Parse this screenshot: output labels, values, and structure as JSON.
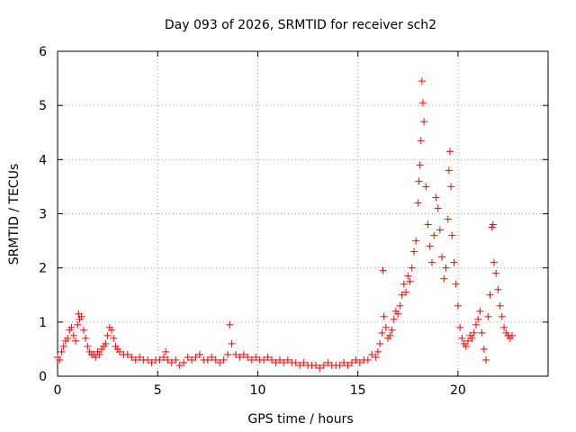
{
  "chart_data": {
    "type": "scatter",
    "title": "Day 093 of 2026, SRMTID for receiver sch2",
    "xlabel": "GPS time / hours",
    "ylabel": "SRMTID / TECUs",
    "xlim": [
      0,
      24.5
    ],
    "ylim": [
      0,
      6
    ],
    "x_ticks": [
      0,
      5,
      10,
      15,
      20
    ],
    "y_ticks": [
      0,
      1,
      2,
      3,
      4,
      5,
      6
    ],
    "x_tick_labels": [
      "0",
      "5",
      "10",
      "15",
      "20"
    ],
    "y_tick_labels": [
      "0",
      "1",
      "2",
      "3",
      "4",
      "5",
      "6"
    ],
    "grid": true,
    "marker": "+",
    "series": [
      {
        "name": "sch2",
        "color": "#ff0000",
        "points": [
          [
            0.0,
            0.35
          ],
          [
            0.1,
            0.3
          ],
          [
            0.2,
            0.45
          ],
          [
            0.3,
            0.55
          ],
          [
            0.4,
            0.65
          ],
          [
            0.5,
            0.7
          ],
          [
            0.6,
            0.85
          ],
          [
            0.7,
            0.9
          ],
          [
            0.8,
            0.75
          ],
          [
            0.9,
            0.65
          ],
          [
            1.0,
            0.95
          ],
          [
            1.05,
            1.15
          ],
          [
            1.1,
            1.05
          ],
          [
            1.2,
            1.1
          ],
          [
            1.3,
            0.85
          ],
          [
            1.4,
            0.7
          ],
          [
            1.5,
            0.55
          ],
          [
            1.6,
            0.45
          ],
          [
            1.7,
            0.4
          ],
          [
            1.8,
            0.4
          ],
          [
            1.9,
            0.35
          ],
          [
            2.0,
            0.45
          ],
          [
            2.1,
            0.4
          ],
          [
            2.2,
            0.5
          ],
          [
            2.3,
            0.55
          ],
          [
            2.4,
            0.6
          ],
          [
            2.5,
            0.75
          ],
          [
            2.6,
            0.9
          ],
          [
            2.7,
            0.85
          ],
          [
            2.8,
            0.7
          ],
          [
            2.9,
            0.55
          ],
          [
            3.0,
            0.5
          ],
          [
            3.1,
            0.45
          ],
          [
            3.3,
            0.4
          ],
          [
            3.5,
            0.4
          ],
          [
            3.7,
            0.35
          ],
          [
            3.9,
            0.3
          ],
          [
            4.1,
            0.35
          ],
          [
            4.3,
            0.3
          ],
          [
            4.5,
            0.3
          ],
          [
            4.7,
            0.25
          ],
          [
            4.9,
            0.3
          ],
          [
            5.1,
            0.3
          ],
          [
            5.3,
            0.35
          ],
          [
            5.4,
            0.45
          ],
          [
            5.5,
            0.3
          ],
          [
            5.7,
            0.25
          ],
          [
            5.9,
            0.3
          ],
          [
            6.1,
            0.2
          ],
          [
            6.3,
            0.25
          ],
          [
            6.5,
            0.35
          ],
          [
            6.7,
            0.3
          ],
          [
            6.9,
            0.35
          ],
          [
            7.1,
            0.4
          ],
          [
            7.3,
            0.3
          ],
          [
            7.5,
            0.3
          ],
          [
            7.7,
            0.35
          ],
          [
            7.9,
            0.3
          ],
          [
            8.1,
            0.25
          ],
          [
            8.3,
            0.3
          ],
          [
            8.5,
            0.4
          ],
          [
            8.6,
            0.95
          ],
          [
            8.7,
            0.6
          ],
          [
            8.9,
            0.4
          ],
          [
            9.1,
            0.35
          ],
          [
            9.3,
            0.4
          ],
          [
            9.5,
            0.35
          ],
          [
            9.7,
            0.3
          ],
          [
            9.9,
            0.35
          ],
          [
            10.1,
            0.3
          ],
          [
            10.3,
            0.3
          ],
          [
            10.5,
            0.35
          ],
          [
            10.7,
            0.3
          ],
          [
            10.9,
            0.25
          ],
          [
            11.1,
            0.3
          ],
          [
            11.3,
            0.25
          ],
          [
            11.5,
            0.3
          ],
          [
            11.7,
            0.25
          ],
          [
            11.9,
            0.25
          ],
          [
            12.1,
            0.2
          ],
          [
            12.3,
            0.25
          ],
          [
            12.5,
            0.2
          ],
          [
            12.7,
            0.2
          ],
          [
            12.9,
            0.2
          ],
          [
            13.1,
            0.15
          ],
          [
            13.3,
            0.2
          ],
          [
            13.5,
            0.25
          ],
          [
            13.7,
            0.2
          ],
          [
            13.9,
            0.2
          ],
          [
            14.1,
            0.2
          ],
          [
            14.3,
            0.25
          ],
          [
            14.5,
            0.2
          ],
          [
            14.7,
            0.25
          ],
          [
            14.9,
            0.3
          ],
          [
            15.1,
            0.25
          ],
          [
            15.3,
            0.3
          ],
          [
            15.5,
            0.3
          ],
          [
            15.7,
            0.4
          ],
          [
            15.9,
            0.35
          ],
          [
            16.0,
            0.45
          ],
          [
            16.1,
            0.6
          ],
          [
            16.2,
            0.8
          ],
          [
            16.25,
            1.95
          ],
          [
            16.3,
            1.1
          ],
          [
            16.4,
            0.9
          ],
          [
            16.5,
            0.7
          ],
          [
            16.6,
            0.75
          ],
          [
            16.7,
            0.85
          ],
          [
            16.8,
            1.05
          ],
          [
            16.9,
            1.2
          ],
          [
            17.0,
            1.15
          ],
          [
            17.1,
            1.3
          ],
          [
            17.2,
            1.5
          ],
          [
            17.3,
            1.7
          ],
          [
            17.4,
            1.55
          ],
          [
            17.5,
            1.85
          ],
          [
            17.6,
            1.75
          ],
          [
            17.7,
            2.0
          ],
          [
            17.8,
            2.3
          ],
          [
            17.9,
            2.5
          ],
          [
            18.0,
            3.2
          ],
          [
            18.05,
            3.6
          ],
          [
            18.1,
            3.9
          ],
          [
            18.15,
            4.35
          ],
          [
            18.2,
            5.45
          ],
          [
            18.25,
            5.05
          ],
          [
            18.3,
            4.7
          ],
          [
            18.4,
            3.5
          ],
          [
            18.5,
            2.8
          ],
          [
            18.6,
            2.4
          ],
          [
            18.7,
            2.1
          ],
          [
            18.8,
            2.6
          ],
          [
            18.9,
            3.3
          ],
          [
            19.0,
            3.1
          ],
          [
            19.1,
            2.7
          ],
          [
            19.2,
            2.2
          ],
          [
            19.3,
            1.8
          ],
          [
            19.4,
            2.0
          ],
          [
            19.5,
            2.9
          ],
          [
            19.55,
            3.8
          ],
          [
            19.6,
            4.15
          ],
          [
            19.65,
            3.5
          ],
          [
            19.7,
            2.6
          ],
          [
            19.8,
            2.1
          ],
          [
            19.9,
            1.7
          ],
          [
            20.0,
            1.3
          ],
          [
            20.1,
            0.9
          ],
          [
            20.2,
            0.7
          ],
          [
            20.3,
            0.6
          ],
          [
            20.4,
            0.55
          ],
          [
            20.5,
            0.65
          ],
          [
            20.6,
            0.75
          ],
          [
            20.7,
            0.7
          ],
          [
            20.8,
            0.8
          ],
          [
            20.9,
            0.95
          ],
          [
            21.0,
            1.05
          ],
          [
            21.1,
            1.2
          ],
          [
            21.2,
            0.8
          ],
          [
            21.3,
            0.5
          ],
          [
            21.4,
            0.3
          ],
          [
            21.5,
            1.1
          ],
          [
            21.6,
            1.5
          ],
          [
            21.7,
            2.75
          ],
          [
            21.75,
            2.8
          ],
          [
            21.8,
            2.1
          ],
          [
            21.9,
            1.9
          ],
          [
            22.0,
            1.6
          ],
          [
            22.1,
            1.3
          ],
          [
            22.2,
            1.1
          ],
          [
            22.3,
            0.9
          ],
          [
            22.4,
            0.8
          ],
          [
            22.5,
            0.75
          ],
          [
            22.6,
            0.7
          ],
          [
            22.7,
            0.75
          ]
        ]
      }
    ]
  }
}
